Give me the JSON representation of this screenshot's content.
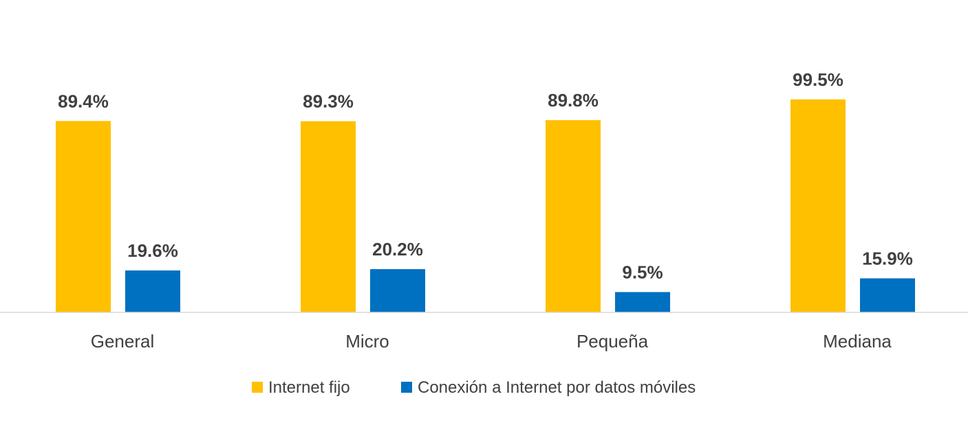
{
  "chart_data": {
    "type": "bar",
    "categories": [
      "General",
      "Micro",
      "Pequeña",
      "Mediana"
    ],
    "series": [
      {
        "name": "Internet fijo",
        "values": [
          89.4,
          89.3,
          89.8,
          99.5
        ],
        "labels": [
          "89.4%",
          "89.3%",
          "89.8%",
          "99.5%"
        ],
        "color": "#FFC000"
      },
      {
        "name": "Conexión a Internet por datos móviles",
        "values": [
          19.6,
          20.2,
          9.5,
          15.9
        ],
        "labels": [
          "19.6%",
          "20.2%",
          "9.5%",
          "15.9%"
        ],
        "color": "#0070C0"
      }
    ],
    "title": "",
    "xlabel": "",
    "ylabel": "",
    "ylim": [
      0,
      100
    ],
    "grid": false,
    "legend": "bottom",
    "axis_color": "#D9D9D9"
  }
}
